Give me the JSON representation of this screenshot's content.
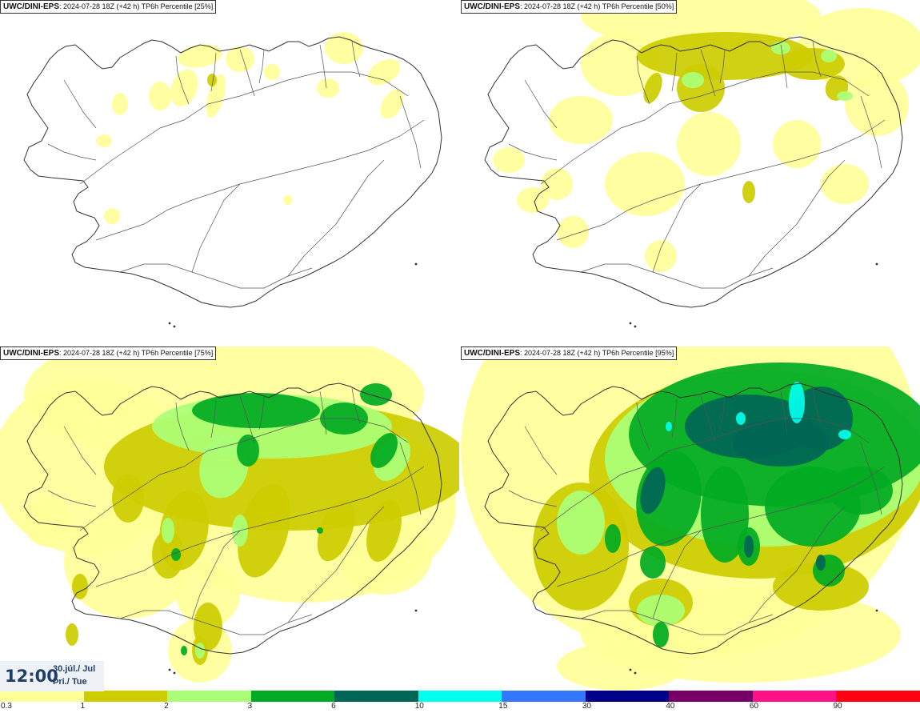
{
  "panels": [
    {
      "model": "UWC/DINI-EPS",
      "run": ": 2024-07-28 18Z (+42 h) TP6h Percentile [25%]",
      "level": 0
    },
    {
      "model": "UWC/DINI-EPS",
      "run": ": 2024-07-28 18Z (+42 h) TP6h Percentile [50%]",
      "level": 1
    },
    {
      "model": "UWC/DINI-EPS",
      "run": ": 2024-07-28 18Z (+42 h) TP6h Percentile [75%]",
      "level": 2
    },
    {
      "model": "UWC/DINI-EPS",
      "run": ": 2024-07-28 18Z (+42 h) TP6h Percentile [95%]",
      "level": 3
    }
  ],
  "valid_time": {
    "time": "12:00",
    "date_line": "30.júl./ Jul",
    "day_line": "Þri./ Tue"
  },
  "colorbar": {
    "thresholds": [
      "0.3",
      "1",
      "2",
      "3",
      "6",
      "10",
      "15",
      "30",
      "40",
      "60",
      "90"
    ],
    "colors": [
      "#ffff99",
      "#cccc00",
      "#aaff77",
      "#00aa22",
      "#006655",
      "#00ffee",
      "#3377ff",
      "#000088",
      "#770066",
      "#ff1188",
      "#ff0011"
    ]
  }
}
